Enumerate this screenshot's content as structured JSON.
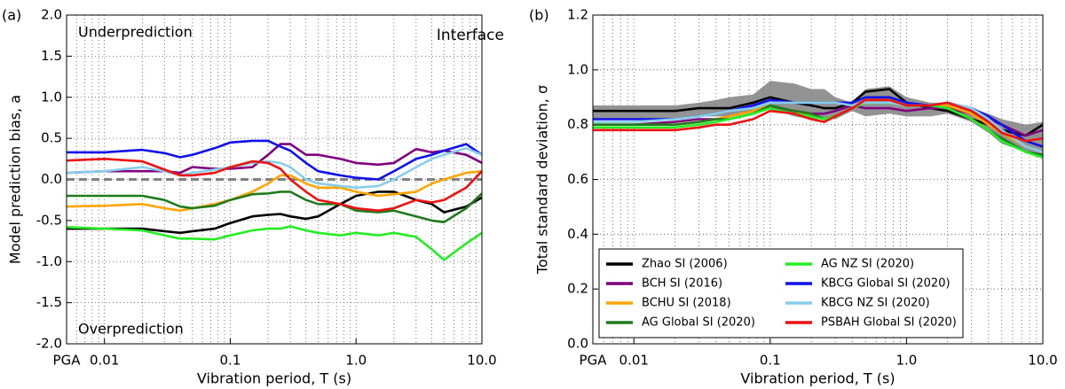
{
  "chart_data": [
    {
      "type": "line",
      "panel_label": "(a)",
      "annotations": [
        "Underprediction",
        "Overprediction",
        "Interface"
      ],
      "xlabel": "Vibration period, T (s)",
      "ylabel": "Model prediction bias, a",
      "log_x": true,
      "grid": true,
      "xlim": [
        0.005,
        10
      ],
      "xticks": [
        {
          "value": 0.005,
          "label": "PGA"
        },
        0.01,
        0.1,
        {
          "value": 1,
          "label": "1.0"
        },
        {
          "value": 10,
          "label": "10.0"
        }
      ],
      "xminorticks": [
        0.006,
        0.007,
        0.008,
        0.009,
        0.02,
        0.03,
        0.04,
        0.05,
        0.06,
        0.07,
        0.08,
        0.09,
        0.2,
        0.3,
        0.4,
        0.5,
        0.6,
        0.7,
        0.8,
        0.9,
        2,
        3,
        4,
        5,
        6,
        7,
        8,
        9
      ],
      "ylim": [
        -2,
        2
      ],
      "yticks": [
        {
          "value": -2,
          "label": "-2.0"
        },
        {
          "value": -1.5,
          "label": "-1.5"
        },
        {
          "value": -1,
          "label": "-1.0"
        },
        {
          "value": -0.5,
          "label": "-0.5"
        },
        {
          "value": 0,
          "label": "0.0"
        },
        0.5,
        {
          "value": 1,
          "label": "1.0"
        },
        1.5,
        {
          "value": 2,
          "label": "2.0"
        }
      ],
      "reference_line": 0,
      "reference_color": "#808080",
      "x": [
        0.005,
        0.01,
        0.02,
        0.03,
        0.04,
        0.05,
        0.075,
        0.1,
        0.15,
        0.2,
        0.25,
        0.3,
        0.4,
        0.5,
        0.75,
        1,
        1.5,
        2,
        3,
        4,
        5,
        7.5,
        10
      ],
      "series": [
        {
          "name": "Zhao SI (2006)",
          "color": "#000000",
          "values": [
            -0.6,
            -0.6,
            -0.6,
            -0.63,
            -0.65,
            -0.63,
            -0.6,
            -0.53,
            -0.45,
            -0.43,
            -0.42,
            -0.45,
            -0.48,
            -0.45,
            -0.3,
            -0.2,
            -0.15,
            -0.15,
            -0.25,
            -0.3,
            -0.4,
            -0.33,
            -0.22
          ]
        },
        {
          "name": "BCH SI (2016)",
          "color": "#800080",
          "values": [
            0.08,
            0.1,
            0.1,
            0.1,
            0.08,
            0.15,
            0.13,
            0.13,
            0.15,
            0.3,
            0.43,
            0.43,
            0.3,
            0.3,
            0.25,
            0.2,
            0.18,
            0.2,
            0.37,
            0.33,
            0.35,
            0.3,
            0.2
          ]
        },
        {
          "name": "BCHU SI (2018)",
          "color": "#ffa500",
          "values": [
            -0.33,
            -0.32,
            -0.3,
            -0.35,
            -0.38,
            -0.35,
            -0.3,
            -0.25,
            -0.15,
            -0.05,
            0.05,
            0.05,
            -0.05,
            -0.1,
            -0.1,
            -0.15,
            -0.2,
            -0.18,
            -0.15,
            -0.05,
            0.0,
            0.08,
            0.1
          ]
        },
        {
          "name": "AG Global SI (2020)",
          "color": "#1e7b1e",
          "values": [
            -0.2,
            -0.2,
            -0.2,
            -0.25,
            -0.33,
            -0.35,
            -0.32,
            -0.25,
            -0.18,
            -0.17,
            -0.15,
            -0.15,
            -0.25,
            -0.3,
            -0.3,
            -0.38,
            -0.4,
            -0.38,
            -0.45,
            -0.5,
            -0.52,
            -0.35,
            -0.17
          ]
        },
        {
          "name": "AG NZ SI (2020)",
          "color": "#22ee22",
          "values": [
            -0.58,
            -0.6,
            -0.62,
            -0.68,
            -0.72,
            -0.72,
            -0.73,
            -0.68,
            -0.62,
            -0.6,
            -0.6,
            -0.57,
            -0.62,
            -0.65,
            -0.68,
            -0.65,
            -0.68,
            -0.65,
            -0.7,
            -0.85,
            -0.98,
            -0.78,
            -0.65
          ]
        },
        {
          "name": "KBCG Global SI (2020)",
          "color": "#1010ee",
          "values": [
            0.33,
            0.33,
            0.36,
            0.32,
            0.27,
            0.3,
            0.38,
            0.45,
            0.47,
            0.47,
            0.4,
            0.35,
            0.2,
            0.1,
            0.05,
            0.02,
            0.0,
            0.1,
            0.25,
            0.3,
            0.35,
            0.43,
            0.3
          ]
        },
        {
          "name": "KBCG NZ SI (2020)",
          "color": "#87ceeb",
          "values": [
            0.08,
            0.1,
            0.15,
            0.1,
            0.05,
            0.08,
            0.12,
            0.15,
            0.2,
            0.22,
            0.2,
            0.15,
            0.0,
            -0.05,
            -0.08,
            -0.1,
            -0.08,
            0.0,
            0.15,
            0.25,
            0.3,
            0.38,
            0.3
          ]
        },
        {
          "name": "PSBAH Global SI (2020)",
          "color": "#ee1111",
          "values": [
            0.23,
            0.25,
            0.22,
            0.12,
            0.05,
            0.05,
            0.08,
            0.15,
            0.22,
            0.2,
            0.13,
            0.0,
            -0.15,
            -0.25,
            -0.3,
            -0.35,
            -0.38,
            -0.35,
            -0.25,
            -0.28,
            -0.25,
            -0.1,
            0.1
          ]
        }
      ]
    },
    {
      "type": "line",
      "panel_label": "(b)",
      "xlabel": "Vibration period, T (s)",
      "ylabel": "Total standard deviation, σ",
      "log_x": true,
      "grid": true,
      "legend": "lower left",
      "legend_columns": 2,
      "xlim": [
        0.005,
        10
      ],
      "xticks": [
        {
          "value": 0.005,
          "label": "PGA"
        },
        0.01,
        0.1,
        {
          "value": 1,
          "label": "1.0"
        },
        {
          "value": 10,
          "label": "10.0"
        }
      ],
      "xminorticks": [
        0.006,
        0.007,
        0.008,
        0.009,
        0.02,
        0.03,
        0.04,
        0.05,
        0.06,
        0.07,
        0.08,
        0.09,
        0.2,
        0.3,
        0.4,
        0.5,
        0.6,
        0.7,
        0.8,
        0.9,
        2,
        3,
        4,
        5,
        6,
        7,
        8,
        9
      ],
      "ylim": [
        0,
        1.2
      ],
      "yticks": [
        {
          "value": 0,
          "label": "0.0"
        },
        0.2,
        0.4,
        0.6,
        0.8,
        {
          "value": 1,
          "label": "1.0"
        },
        1.2
      ],
      "x": [
        0.005,
        0.01,
        0.02,
        0.03,
        0.04,
        0.05,
        0.075,
        0.1,
        0.15,
        0.2,
        0.25,
        0.3,
        0.4,
        0.5,
        0.75,
        1,
        1.5,
        2,
        3,
        4,
        5,
        7.5,
        10
      ],
      "band": {
        "color": "#808080",
        "lower": [
          0.82,
          0.82,
          0.82,
          0.83,
          0.83,
          0.83,
          0.85,
          0.86,
          0.83,
          0.82,
          0.82,
          0.82,
          0.85,
          0.83,
          0.84,
          0.83,
          0.83,
          0.84,
          0.81,
          0.77,
          0.73,
          0.7,
          0.69
        ],
        "upper": [
          0.87,
          0.87,
          0.87,
          0.88,
          0.89,
          0.9,
          0.91,
          0.96,
          0.95,
          0.93,
          0.93,
          0.9,
          0.88,
          0.93,
          0.94,
          0.9,
          0.88,
          0.88,
          0.86,
          0.84,
          0.82,
          0.8,
          0.81
        ]
      },
      "series": [
        {
          "name": "Zhao SI (2006)",
          "color": "#000000",
          "values": [
            0.85,
            0.85,
            0.85,
            0.86,
            0.86,
            0.86,
            0.88,
            0.9,
            0.88,
            0.87,
            0.86,
            0.86,
            0.88,
            0.92,
            0.93,
            0.88,
            0.86,
            0.85,
            0.82,
            0.8,
            0.78,
            0.76,
            0.8
          ]
        },
        {
          "name": "BCH SI (2016)",
          "color": "#800080",
          "values": [
            0.8,
            0.8,
            0.81,
            0.82,
            0.82,
            0.83,
            0.85,
            0.86,
            0.85,
            0.84,
            0.84,
            0.85,
            0.87,
            0.86,
            0.86,
            0.85,
            0.86,
            0.86,
            0.84,
            0.82,
            0.8,
            0.76,
            0.78
          ]
        },
        {
          "name": "BCHU SI (2018)",
          "color": "#ffa500",
          "values": [
            0.8,
            0.8,
            0.8,
            0.81,
            0.82,
            0.83,
            0.85,
            0.87,
            0.85,
            0.83,
            0.82,
            0.83,
            0.86,
            0.88,
            0.88,
            0.87,
            0.87,
            0.87,
            0.84,
            0.8,
            0.77,
            0.72,
            0.7
          ]
        },
        {
          "name": "AG Global SI (2020)",
          "color": "#1e7b1e",
          "values": [
            0.8,
            0.8,
            0.8,
            0.81,
            0.82,
            0.82,
            0.84,
            0.87,
            0.85,
            0.84,
            0.82,
            0.83,
            0.86,
            0.88,
            0.88,
            0.87,
            0.87,
            0.86,
            0.82,
            0.78,
            0.75,
            0.7,
            0.69
          ]
        },
        {
          "name": "AG NZ SI (2020)",
          "color": "#22ee22",
          "values": [
            0.79,
            0.79,
            0.79,
            0.8,
            0.81,
            0.82,
            0.84,
            0.86,
            0.84,
            0.83,
            0.82,
            0.83,
            0.86,
            0.88,
            0.88,
            0.87,
            0.87,
            0.86,
            0.82,
            0.78,
            0.74,
            0.7,
            0.68
          ]
        },
        {
          "name": "KBCG Global SI (2020)",
          "color": "#1010ee",
          "values": [
            0.82,
            0.82,
            0.82,
            0.83,
            0.84,
            0.85,
            0.87,
            0.89,
            0.88,
            0.88,
            0.88,
            0.88,
            0.88,
            0.9,
            0.9,
            0.88,
            0.87,
            0.88,
            0.86,
            0.83,
            0.8,
            0.74,
            0.72
          ]
        },
        {
          "name": "KBCG NZ SI (2020)",
          "color": "#87ceeb",
          "values": [
            0.81,
            0.81,
            0.82,
            0.83,
            0.84,
            0.85,
            0.86,
            0.88,
            0.88,
            0.88,
            0.88,
            0.88,
            0.87,
            0.88,
            0.88,
            0.87,
            0.87,
            0.88,
            0.86,
            0.82,
            0.78,
            0.72,
            0.7
          ]
        },
        {
          "name": "PSBAH Global SI (2020)",
          "color": "#ee1111",
          "values": [
            0.78,
            0.78,
            0.78,
            0.79,
            0.8,
            0.8,
            0.82,
            0.85,
            0.84,
            0.82,
            0.81,
            0.83,
            0.86,
            0.89,
            0.89,
            0.87,
            0.87,
            0.88,
            0.85,
            0.81,
            0.77,
            0.74,
            0.75
          ]
        }
      ]
    }
  ]
}
